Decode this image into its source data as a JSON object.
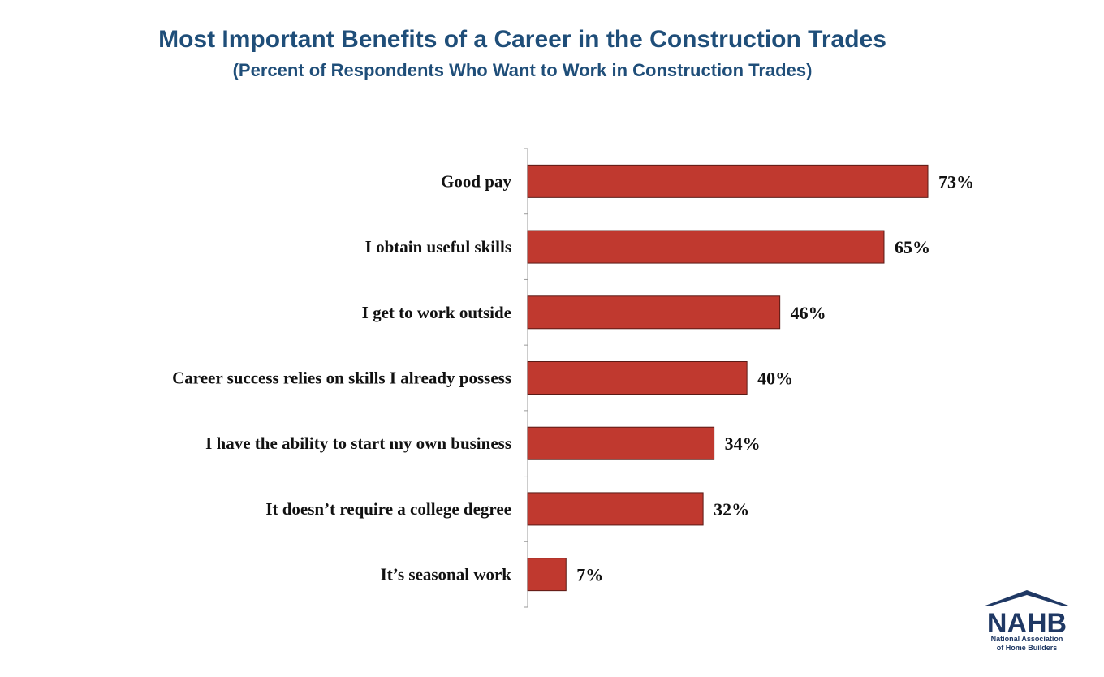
{
  "chart_data": {
    "type": "bar",
    "orientation": "horizontal",
    "title": "Most Important Benefits of a Career in the Construction Trades",
    "subtitle": "(Percent of Respondents Who Want to Work in Construction Trades)",
    "categories": [
      "Good pay",
      "I obtain useful skills",
      "I get to work outside",
      "Career success relies on skills I already possess",
      "I have the ability to start my own business",
      "It doesn’t require a college degree",
      "It’s seasonal work"
    ],
    "values": [
      73,
      65,
      46,
      40,
      34,
      32,
      7
    ],
    "value_labels": [
      "73%",
      "65%",
      "46%",
      "40%",
      "34%",
      "32%",
      "7%"
    ],
    "unit": "%",
    "xlim": [
      0,
      100
    ],
    "grid": false,
    "legend": "none",
    "bar_color": "#c0392f",
    "bar_edge_color": "#5a1a15"
  },
  "logo": {
    "name": "NAHB",
    "line1": "National Association",
    "line2": "of Home Builders",
    "colors": {
      "navy": "#1f3864",
      "red": "#c0392f"
    }
  }
}
